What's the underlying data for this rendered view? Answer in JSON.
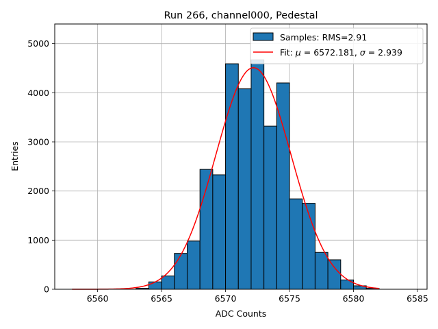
{
  "chart_data": {
    "type": "bar",
    "title": "Run 266, channel000, Pedestal",
    "xlabel": "ADC Counts",
    "ylabel": "Entries",
    "xlim": [
      6556.65,
      6585.75
    ],
    "ylim": [
      0,
      5400
    ],
    "xticks": [
      6560,
      6565,
      6570,
      6575,
      6580,
      6585
    ],
    "yticks": [
      0,
      1000,
      2000,
      3000,
      4000,
      5000
    ],
    "grid": true,
    "legend_position": "top-right",
    "bin_width": 1,
    "bins": [
      {
        "x": 6563.5,
        "y": 20
      },
      {
        "x": 6564.5,
        "y": 150
      },
      {
        "x": 6565.5,
        "y": 270
      },
      {
        "x": 6566.5,
        "y": 730
      },
      {
        "x": 6567.5,
        "y": 980
      },
      {
        "x": 6568.5,
        "y": 2440
      },
      {
        "x": 6569.5,
        "y": 2330
      },
      {
        "x": 6570.5,
        "y": 4590
      },
      {
        "x": 6571.5,
        "y": 4080
      },
      {
        "x": 6572.5,
        "y": 4670
      },
      {
        "x": 6573.5,
        "y": 3320
      },
      {
        "x": 6574.5,
        "y": 4200
      },
      {
        "x": 6575.5,
        "y": 1840
      },
      {
        "x": 6576.5,
        "y": 1750
      },
      {
        "x": 6577.5,
        "y": 750
      },
      {
        "x": 6578.5,
        "y": 600
      },
      {
        "x": 6579.5,
        "y": 190
      },
      {
        "x": 6580.5,
        "y": 70
      },
      {
        "x": 6581.5,
        "y": 20
      }
    ],
    "fit": {
      "type": "gaussian",
      "mu": 6572.181,
      "sigma": 2.939,
      "amplitude": 4510,
      "x_range": [
        6558,
        6582
      ]
    },
    "series": [
      {
        "name": "Samples: RMS=2.91",
        "kind": "histogram",
        "color": "#1f77b4",
        "edgecolor": "#000000"
      },
      {
        "name_prefix": "Fit: ",
        "mu_symbol": "μ",
        "mu_text": " = 6572.181, ",
        "sigma_symbol": "σ",
        "sigma_text": " = 2.939",
        "kind": "line",
        "color": "#ff0000"
      }
    ]
  }
}
